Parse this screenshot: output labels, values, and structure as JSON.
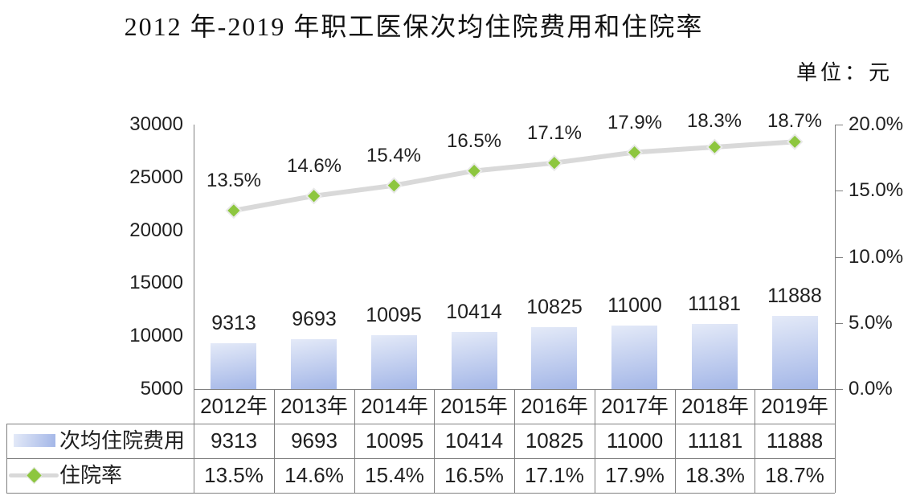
{
  "chart": {
    "title": "2012 年-2019 年职工医保次均住院费用和住院率",
    "unit_label": "单位：元"
  },
  "chart_data": {
    "type": "combo-bar-line",
    "categories": [
      "2012年",
      "2013年",
      "2014年",
      "2015年",
      "2016年",
      "2017年",
      "2018年",
      "2019年"
    ],
    "series": [
      {
        "name": "次均住院费用",
        "type": "bar",
        "axis": "left",
        "values": [
          9313,
          9693,
          10095,
          10414,
          10825,
          11000,
          11181,
          11888
        ],
        "labels": [
          "9313",
          "9693",
          "10095",
          "10414",
          "10825",
          "11000",
          "11181",
          "11888"
        ]
      },
      {
        "name": "住院率",
        "type": "line",
        "axis": "right",
        "values": [
          13.5,
          14.6,
          15.4,
          16.5,
          17.1,
          17.9,
          18.3,
          18.7
        ],
        "labels": [
          "13.5%",
          "14.6%",
          "15.4%",
          "16.5%",
          "17.1%",
          "17.9%",
          "18.3%",
          "18.7%"
        ]
      }
    ],
    "left_axis": {
      "min": 5000,
      "max": 30000,
      "step": 5000,
      "tick_labels": [
        "30000",
        "25000",
        "20000",
        "15000",
        "10000",
        "5000"
      ]
    },
    "right_axis": {
      "min": 0,
      "max": 20,
      "step": 5,
      "tick_labels": [
        "20.0%",
        "15.0%",
        "10.0%",
        "5.0%",
        "0.0%"
      ]
    },
    "grid": false,
    "legend_position": "data-table-left",
    "data_labels": true
  },
  "colors": {
    "bar_gradient_top": "#e4eaf8",
    "bar_gradient_bottom": "#a3b6e7",
    "line": "#d9d9d9",
    "marker": "#8dc63f",
    "marker_edge": "#e9e9e9",
    "border": "#808080",
    "text": "#1f1f1f"
  }
}
